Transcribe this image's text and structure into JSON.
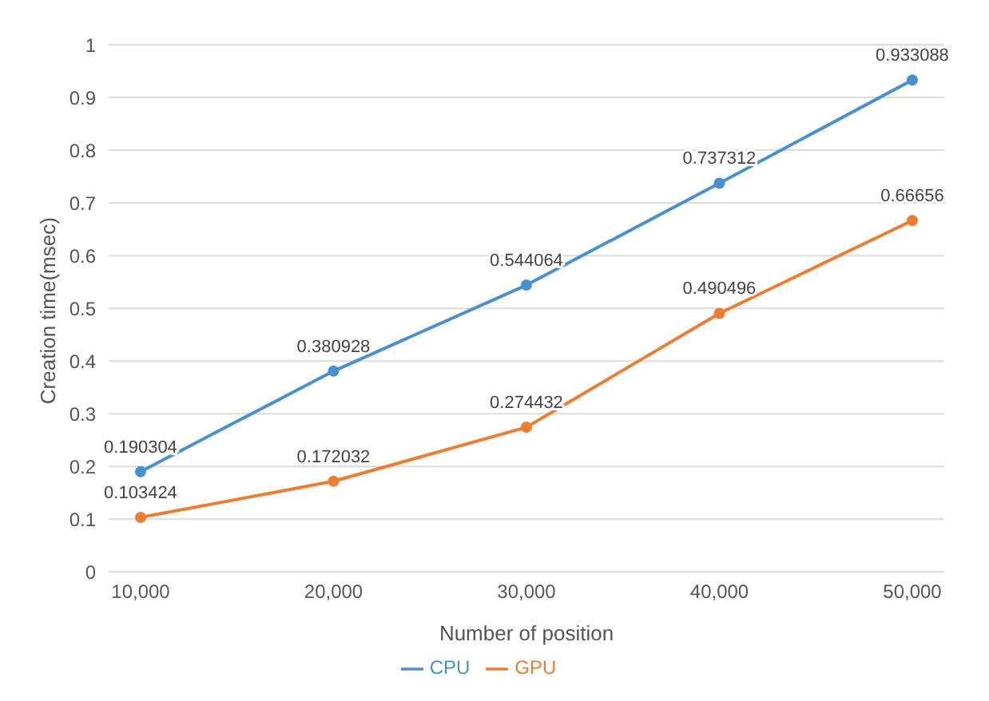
{
  "chart_data": {
    "type": "line",
    "xlabel": "Number of position",
    "ylabel": "Creation time(msec)",
    "categories": [
      "10,000",
      "20,000",
      "30,000",
      "40,000",
      "50,000"
    ],
    "series": [
      {
        "name": "CPU",
        "color": "#4a90d0",
        "values": [
          0.190304,
          0.380928,
          0.544064,
          0.737312,
          0.933088
        ]
      },
      {
        "name": "GPU",
        "color": "#ed7d31",
        "values": [
          0.103424,
          0.172032,
          0.274432,
          0.490496,
          0.66656
        ]
      }
    ],
    "ylim": [
      0,
      1
    ],
    "yticks": [
      0,
      {
        "value": 0.1,
        "label": "0.1"
      },
      {
        "value": 0.2,
        "label": "0.2"
      },
      {
        "value": 0.3,
        "label": "0.3"
      },
      {
        "value": 0.4,
        "label": "0.4"
      },
      {
        "value": 0.5,
        "label": "0.5"
      },
      {
        "value": 0.6,
        "label": "0.6"
      },
      {
        "value": 0.7,
        "label": "0.7"
      },
      {
        "value": 0.8,
        "label": "0.8"
      },
      {
        "value": 0.9,
        "label": "0.9"
      },
      1
    ],
    "grid": "y",
    "legend": "bottom",
    "marker": "circle",
    "line_style": "solid",
    "data_labels": true
  }
}
